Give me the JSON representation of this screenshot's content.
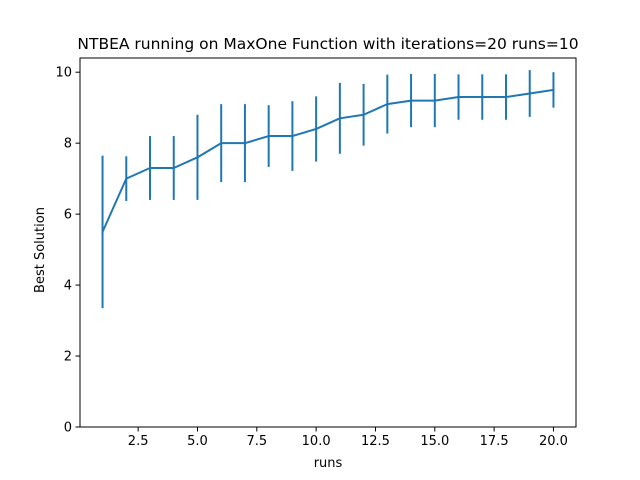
{
  "chart_data": {
    "type": "line",
    "title": "NTBEA running on MaxOne Function with iterations=20 runs=10",
    "xlabel": "runs",
    "ylabel": "Best Solution",
    "xlim": [
      0.05,
      20.95
    ],
    "ylim": [
      0,
      10.4
    ],
    "grid": false,
    "color": "#1f77b4",
    "x_ticks": [
      2.5,
      5.0,
      7.5,
      10.0,
      12.5,
      15.0,
      17.5,
      20.0
    ],
    "x_tick_labels": [
      "2.5",
      "5.0",
      "7.5",
      "10.0",
      "12.5",
      "15.0",
      "17.5",
      "20.0"
    ],
    "y_ticks": [
      0,
      2,
      4,
      6,
      8,
      10
    ],
    "y_tick_labels": [
      "0",
      "2",
      "4",
      "6",
      "8",
      "10"
    ],
    "series": [
      {
        "x": [
          1,
          2,
          3,
          4,
          5,
          6,
          7,
          8,
          9,
          10,
          11,
          12,
          13,
          14,
          15,
          16,
          17,
          18,
          19,
          20
        ],
        "y": [
          5.5,
          7.0,
          7.3,
          7.3,
          7.6,
          8.0,
          8.0,
          8.2,
          8.2,
          8.4,
          8.7,
          8.8,
          9.1,
          9.2,
          9.2,
          9.3,
          9.3,
          9.3,
          9.4,
          9.5
        ],
        "yerr": [
          2.15,
          0.63,
          0.9,
          0.9,
          1.2,
          1.1,
          1.1,
          0.87,
          0.98,
          0.92,
          1.0,
          0.87,
          0.83,
          0.75,
          0.75,
          0.64,
          0.64,
          0.64,
          0.66,
          0.5
        ]
      }
    ]
  }
}
